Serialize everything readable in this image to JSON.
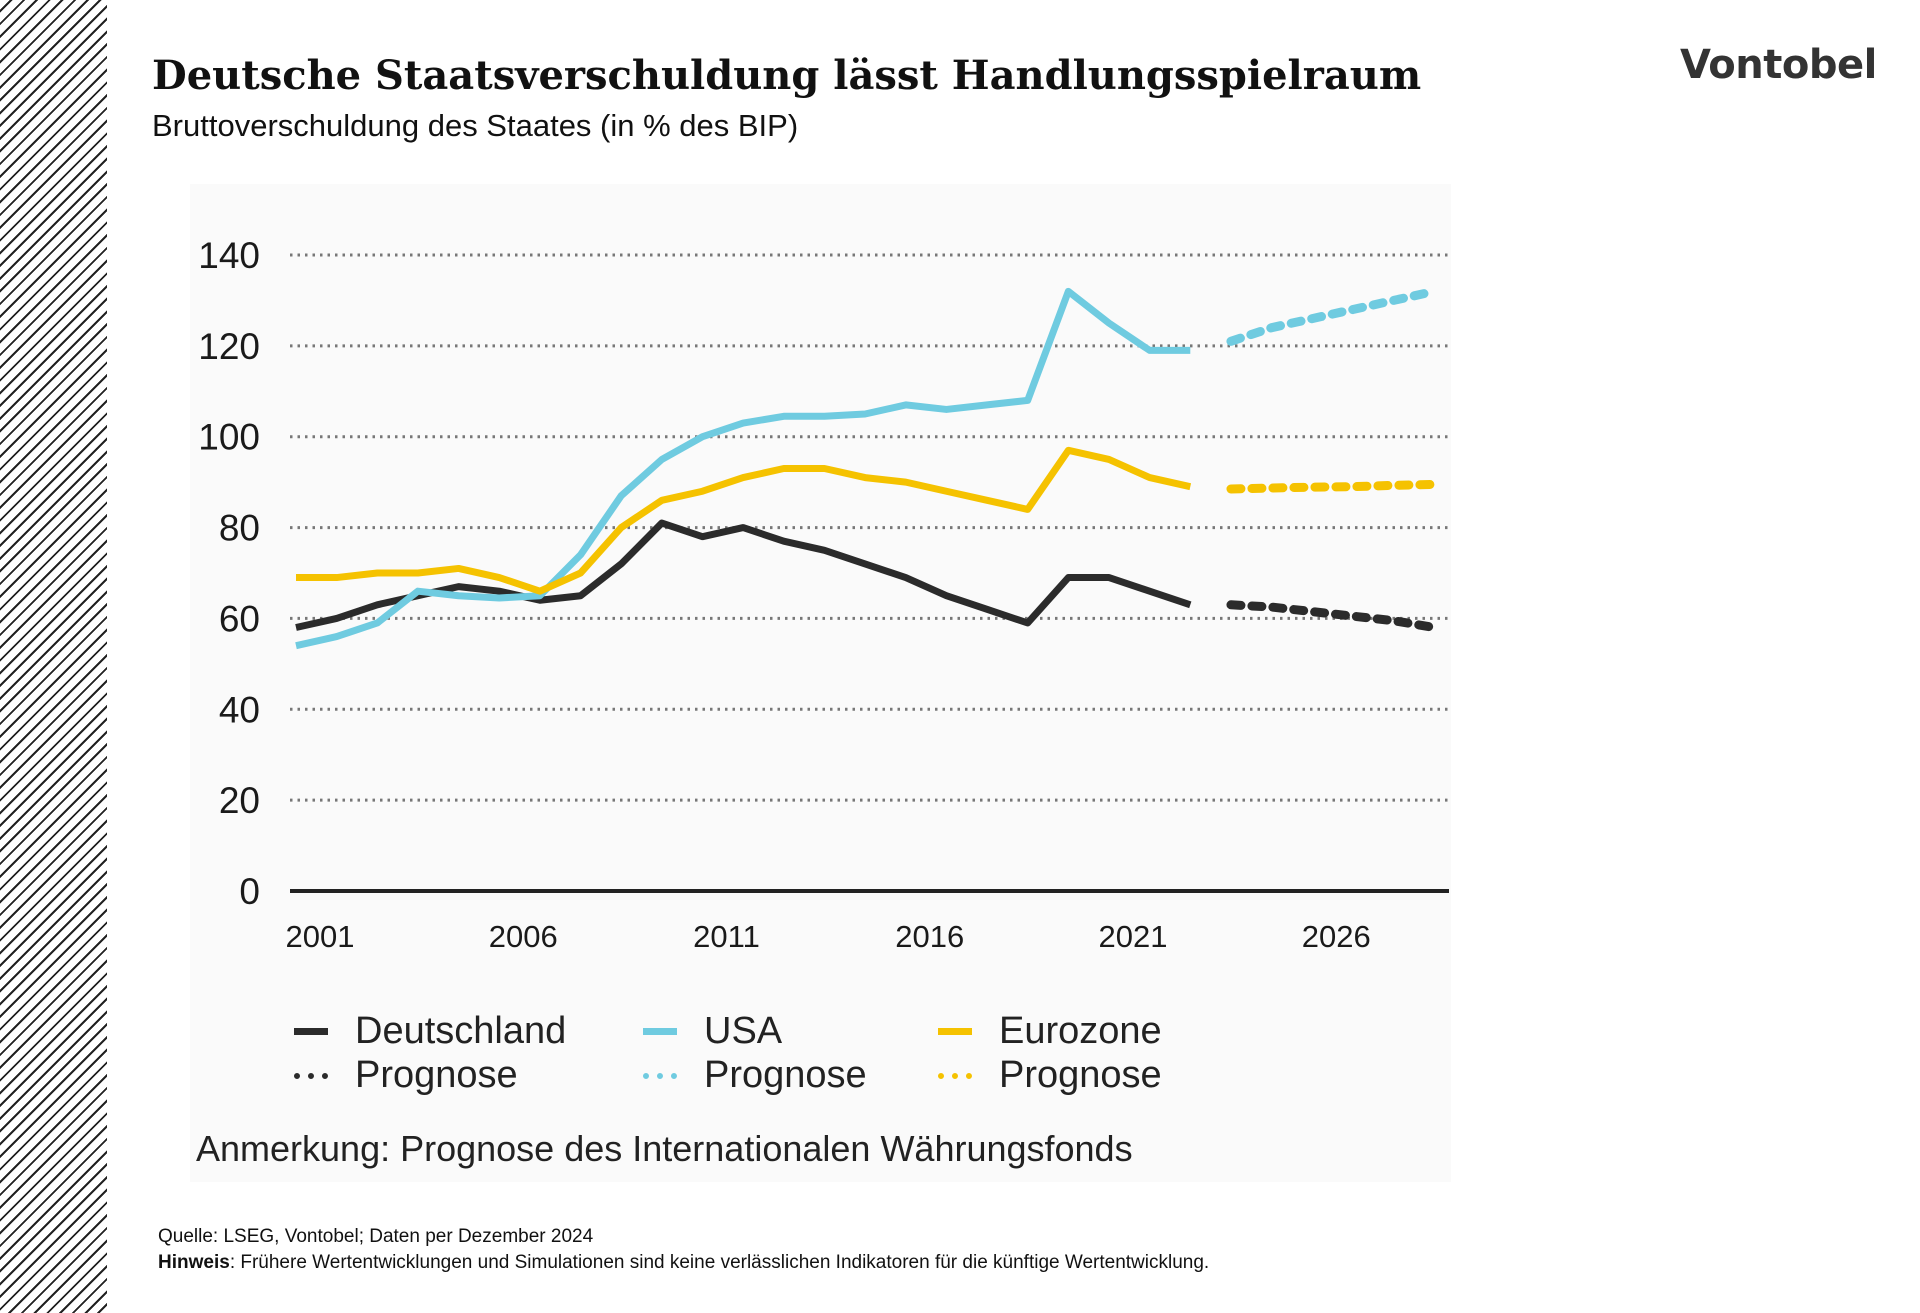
{
  "header": {
    "title": "Deutsche Staatsverschuldung lässt Handlungsspielraum",
    "subtitle": "Bruttoverschuldung des Staates (in % des BIP)",
    "logo": "Vontobel"
  },
  "chart_data": {
    "type": "line",
    "title": "",
    "xlabel": "",
    "ylabel": "",
    "ylim": [
      0,
      140
    ],
    "yticks": [
      "0",
      "20",
      "40",
      "60",
      "80",
      "100",
      "120",
      "140"
    ],
    "xlim": [
      2001,
      2029
    ],
    "xticks": [
      "2001",
      "2006",
      "2011",
      "2016",
      "2021",
      "2026"
    ],
    "grid": "horizontal dotted",
    "legend_position": "bottom",
    "series": [
      {
        "name": "Deutschland",
        "color": "#2b2b2b",
        "style": "solid",
        "x": [
          2001,
          2002,
          2003,
          2004,
          2005,
          2006,
          2007,
          2008,
          2009,
          2010,
          2011,
          2012,
          2013,
          2014,
          2015,
          2016,
          2017,
          2018,
          2019,
          2020,
          2021,
          2022,
          2023
        ],
        "values": [
          58,
          60,
          63,
          65,
          67,
          66,
          64,
          65,
          72,
          81,
          78,
          80,
          77,
          75,
          72,
          69,
          65,
          62,
          59,
          69,
          69,
          66,
          63
        ]
      },
      {
        "name": "Prognose",
        "color": "#2b2b2b",
        "style": "dotted",
        "x": [
          2024,
          2025,
          2026,
          2027,
          2028,
          2029
        ],
        "values": [
          63,
          62.5,
          61.5,
          60.5,
          59.5,
          58
        ]
      },
      {
        "name": "USA",
        "color": "#6fcbe0",
        "style": "solid",
        "x": [
          2001,
          2002,
          2003,
          2004,
          2005,
          2006,
          2007,
          2008,
          2009,
          2010,
          2011,
          2012,
          2013,
          2014,
          2015,
          2016,
          2017,
          2018,
          2019,
          2020,
          2021,
          2022,
          2023
        ],
        "values": [
          54,
          56,
          59,
          66,
          65,
          64.5,
          65,
          74,
          87,
          95,
          100,
          103,
          104.5,
          104.5,
          105,
          107,
          106,
          107,
          108,
          132,
          125,
          119,
          119
        ]
      },
      {
        "name": "Prognose",
        "color": "#6fcbe0",
        "style": "dotted",
        "x": [
          2024,
          2025,
          2026,
          2027,
          2028,
          2029
        ],
        "values": [
          121,
          124,
          126,
          128,
          130,
          132
        ]
      },
      {
        "name": "Eurozone",
        "color": "#f5c200",
        "style": "solid",
        "x": [
          2001,
          2002,
          2003,
          2004,
          2005,
          2006,
          2007,
          2008,
          2009,
          2010,
          2011,
          2012,
          2013,
          2014,
          2015,
          2016,
          2017,
          2018,
          2019,
          2020,
          2021,
          2022,
          2023
        ],
        "values": [
          69,
          69,
          70,
          70,
          71,
          69,
          66,
          70,
          80,
          86,
          88,
          91,
          93,
          93,
          91,
          90,
          88,
          86,
          84,
          97,
          95,
          91,
          89
        ]
      },
      {
        "name": "Prognose",
        "color": "#f5c200",
        "style": "dotted",
        "x": [
          2024,
          2025,
          2026,
          2027,
          2028,
          2029
        ],
        "values": [
          88.5,
          88.7,
          88.9,
          89,
          89.3,
          89.5
        ]
      }
    ],
    "annotation": "Anmerkung: Prognose des Internationalen Währungsfonds"
  },
  "footer": {
    "source": "Quelle: LSEG, Vontobel; Daten per Dezember 2024",
    "note_label": "Hinweis",
    "note_text": ": Frühere Wertentwicklungen und Simulationen sind keine verlässlichen Indikatoren für die künftige Wertentwicklung."
  }
}
